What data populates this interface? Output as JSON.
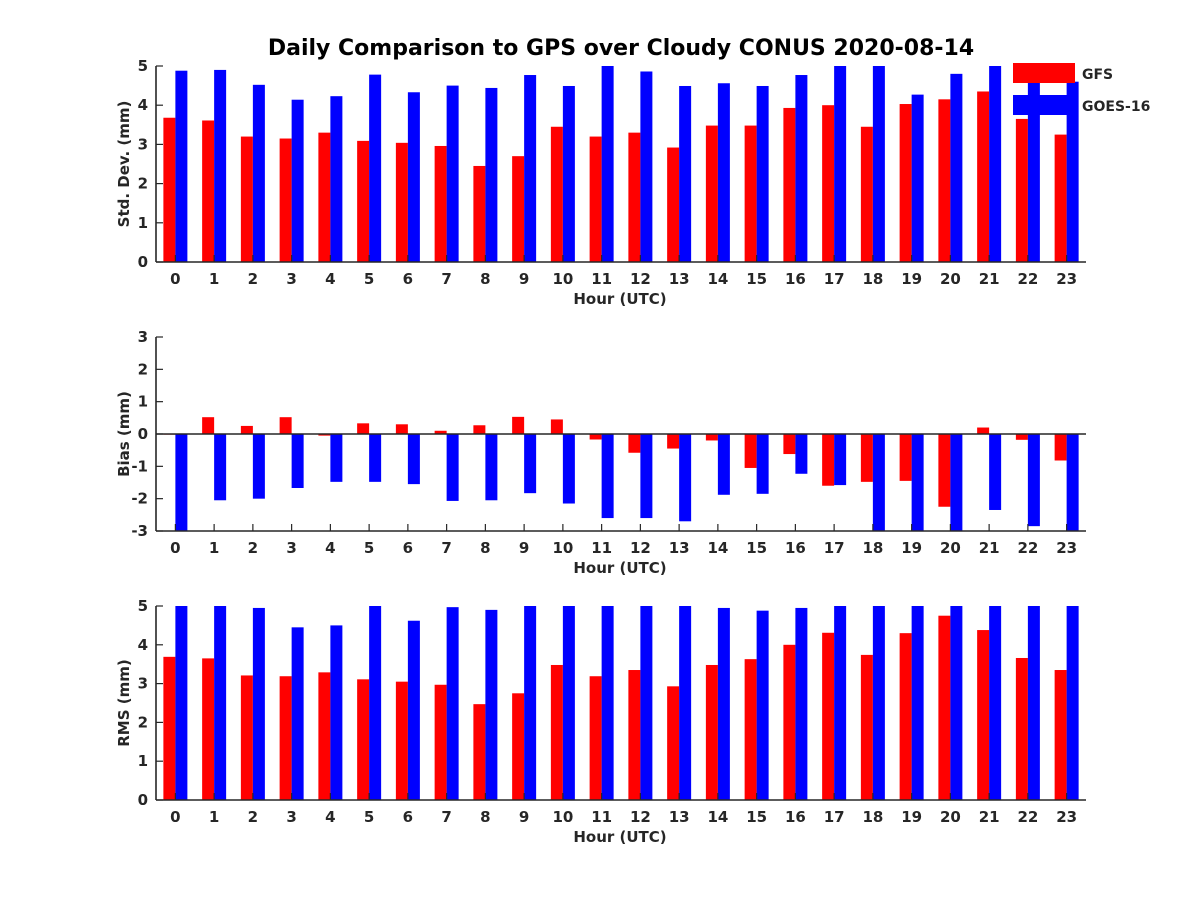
{
  "title": "Daily Comparison to GPS over Cloudy CONUS 2020-08-14",
  "colors": {
    "GFS": "#ff0000",
    "GOES-16": "#0000ff"
  },
  "chart_data": [
    {
      "id": "std",
      "type": "bar",
      "title": "Daily Comparison to GPS over Cloudy CONUS 2020-08-14",
      "xlabel": "Hour (UTC)",
      "ylabel": "Std. Dev. (mm)",
      "ylim": [
        0,
        5
      ],
      "yticks": [
        0,
        1,
        2,
        3,
        4,
        5
      ],
      "categories": [
        "0",
        "1",
        "2",
        "3",
        "4",
        "5",
        "6",
        "7",
        "8",
        "9",
        "10",
        "11",
        "12",
        "13",
        "14",
        "15",
        "16",
        "17",
        "18",
        "19",
        "20",
        "21",
        "22",
        "23"
      ],
      "legend": "top-right",
      "series": [
        {
          "name": "GFS",
          "values": [
            3.68,
            3.61,
            3.2,
            3.15,
            3.3,
            3.09,
            3.04,
            2.96,
            2.45,
            2.7,
            3.45,
            3.2,
            3.3,
            2.92,
            3.48,
            3.48,
            3.93,
            4.0,
            3.45,
            4.03,
            4.15,
            4.35,
            3.65,
            3.25
          ]
        },
        {
          "name": "GOES-16",
          "values": [
            4.88,
            4.9,
            4.52,
            4.14,
            4.23,
            4.78,
            4.33,
            4.5,
            4.44,
            4.77,
            4.49,
            5.0,
            4.86,
            4.49,
            4.56,
            4.49,
            4.77,
            5.0,
            5.0,
            4.27,
            4.8,
            5.0,
            5.0,
            4.6
          ]
        }
      ]
    },
    {
      "id": "bias",
      "type": "bar",
      "xlabel": "Hour (UTC)",
      "ylabel": "Bias (mm)",
      "ylim": [
        -3,
        3
      ],
      "yticks": [
        -3,
        -2,
        -1,
        0,
        1,
        2,
        3
      ],
      "zero_line": true,
      "categories": [
        "0",
        "1",
        "2",
        "3",
        "4",
        "5",
        "6",
        "7",
        "8",
        "9",
        "10",
        "11",
        "12",
        "13",
        "14",
        "15",
        "16",
        "17",
        "18",
        "19",
        "20",
        "21",
        "22",
        "23"
      ],
      "series": [
        {
          "name": "GFS",
          "values": [
            -0.02,
            0.52,
            0.25,
            0.52,
            -0.05,
            0.33,
            0.3,
            0.1,
            0.27,
            0.53,
            0.45,
            -0.17,
            -0.58,
            -0.45,
            -0.2,
            -1.05,
            -0.62,
            -1.6,
            -1.48,
            -1.45,
            -2.25,
            0.2,
            -0.18,
            -0.82
          ]
        },
        {
          "name": "GOES-16",
          "values": [
            -3.0,
            -2.05,
            -2.0,
            -1.67,
            -1.48,
            -1.48,
            -1.55,
            -2.07,
            -2.05,
            -1.83,
            -2.15,
            -2.6,
            -2.6,
            -2.7,
            -1.88,
            -1.85,
            -1.23,
            -1.58,
            -3.0,
            -3.0,
            -3.0,
            -2.35,
            -2.85,
            -3.0
          ]
        }
      ]
    },
    {
      "id": "rms",
      "type": "bar",
      "xlabel": "Hour (UTC)",
      "ylabel": "RMS (mm)",
      "ylim": [
        0,
        5
      ],
      "yticks": [
        0,
        1,
        2,
        3,
        4,
        5
      ],
      "categories": [
        "0",
        "1",
        "2",
        "3",
        "4",
        "5",
        "6",
        "7",
        "8",
        "9",
        "10",
        "11",
        "12",
        "13",
        "14",
        "15",
        "16",
        "17",
        "18",
        "19",
        "20",
        "21",
        "22",
        "23"
      ],
      "series": [
        {
          "name": "GFS",
          "values": [
            3.69,
            3.65,
            3.21,
            3.19,
            3.29,
            3.11,
            3.05,
            2.97,
            2.47,
            2.75,
            3.48,
            3.19,
            3.35,
            2.93,
            3.48,
            3.63,
            4.0,
            4.31,
            3.74,
            4.3,
            4.75,
            4.38,
            3.66,
            3.35
          ]
        },
        {
          "name": "GOES-16",
          "values": [
            5.0,
            5.0,
            4.95,
            4.45,
            4.5,
            5.0,
            4.62,
            4.97,
            4.9,
            5.0,
            5.0,
            5.0,
            5.0,
            5.0,
            4.95,
            4.88,
            4.95,
            5.0,
            5.0,
            5.0,
            5.0,
            5.0,
            5.0,
            5.0
          ]
        }
      ]
    }
  ]
}
